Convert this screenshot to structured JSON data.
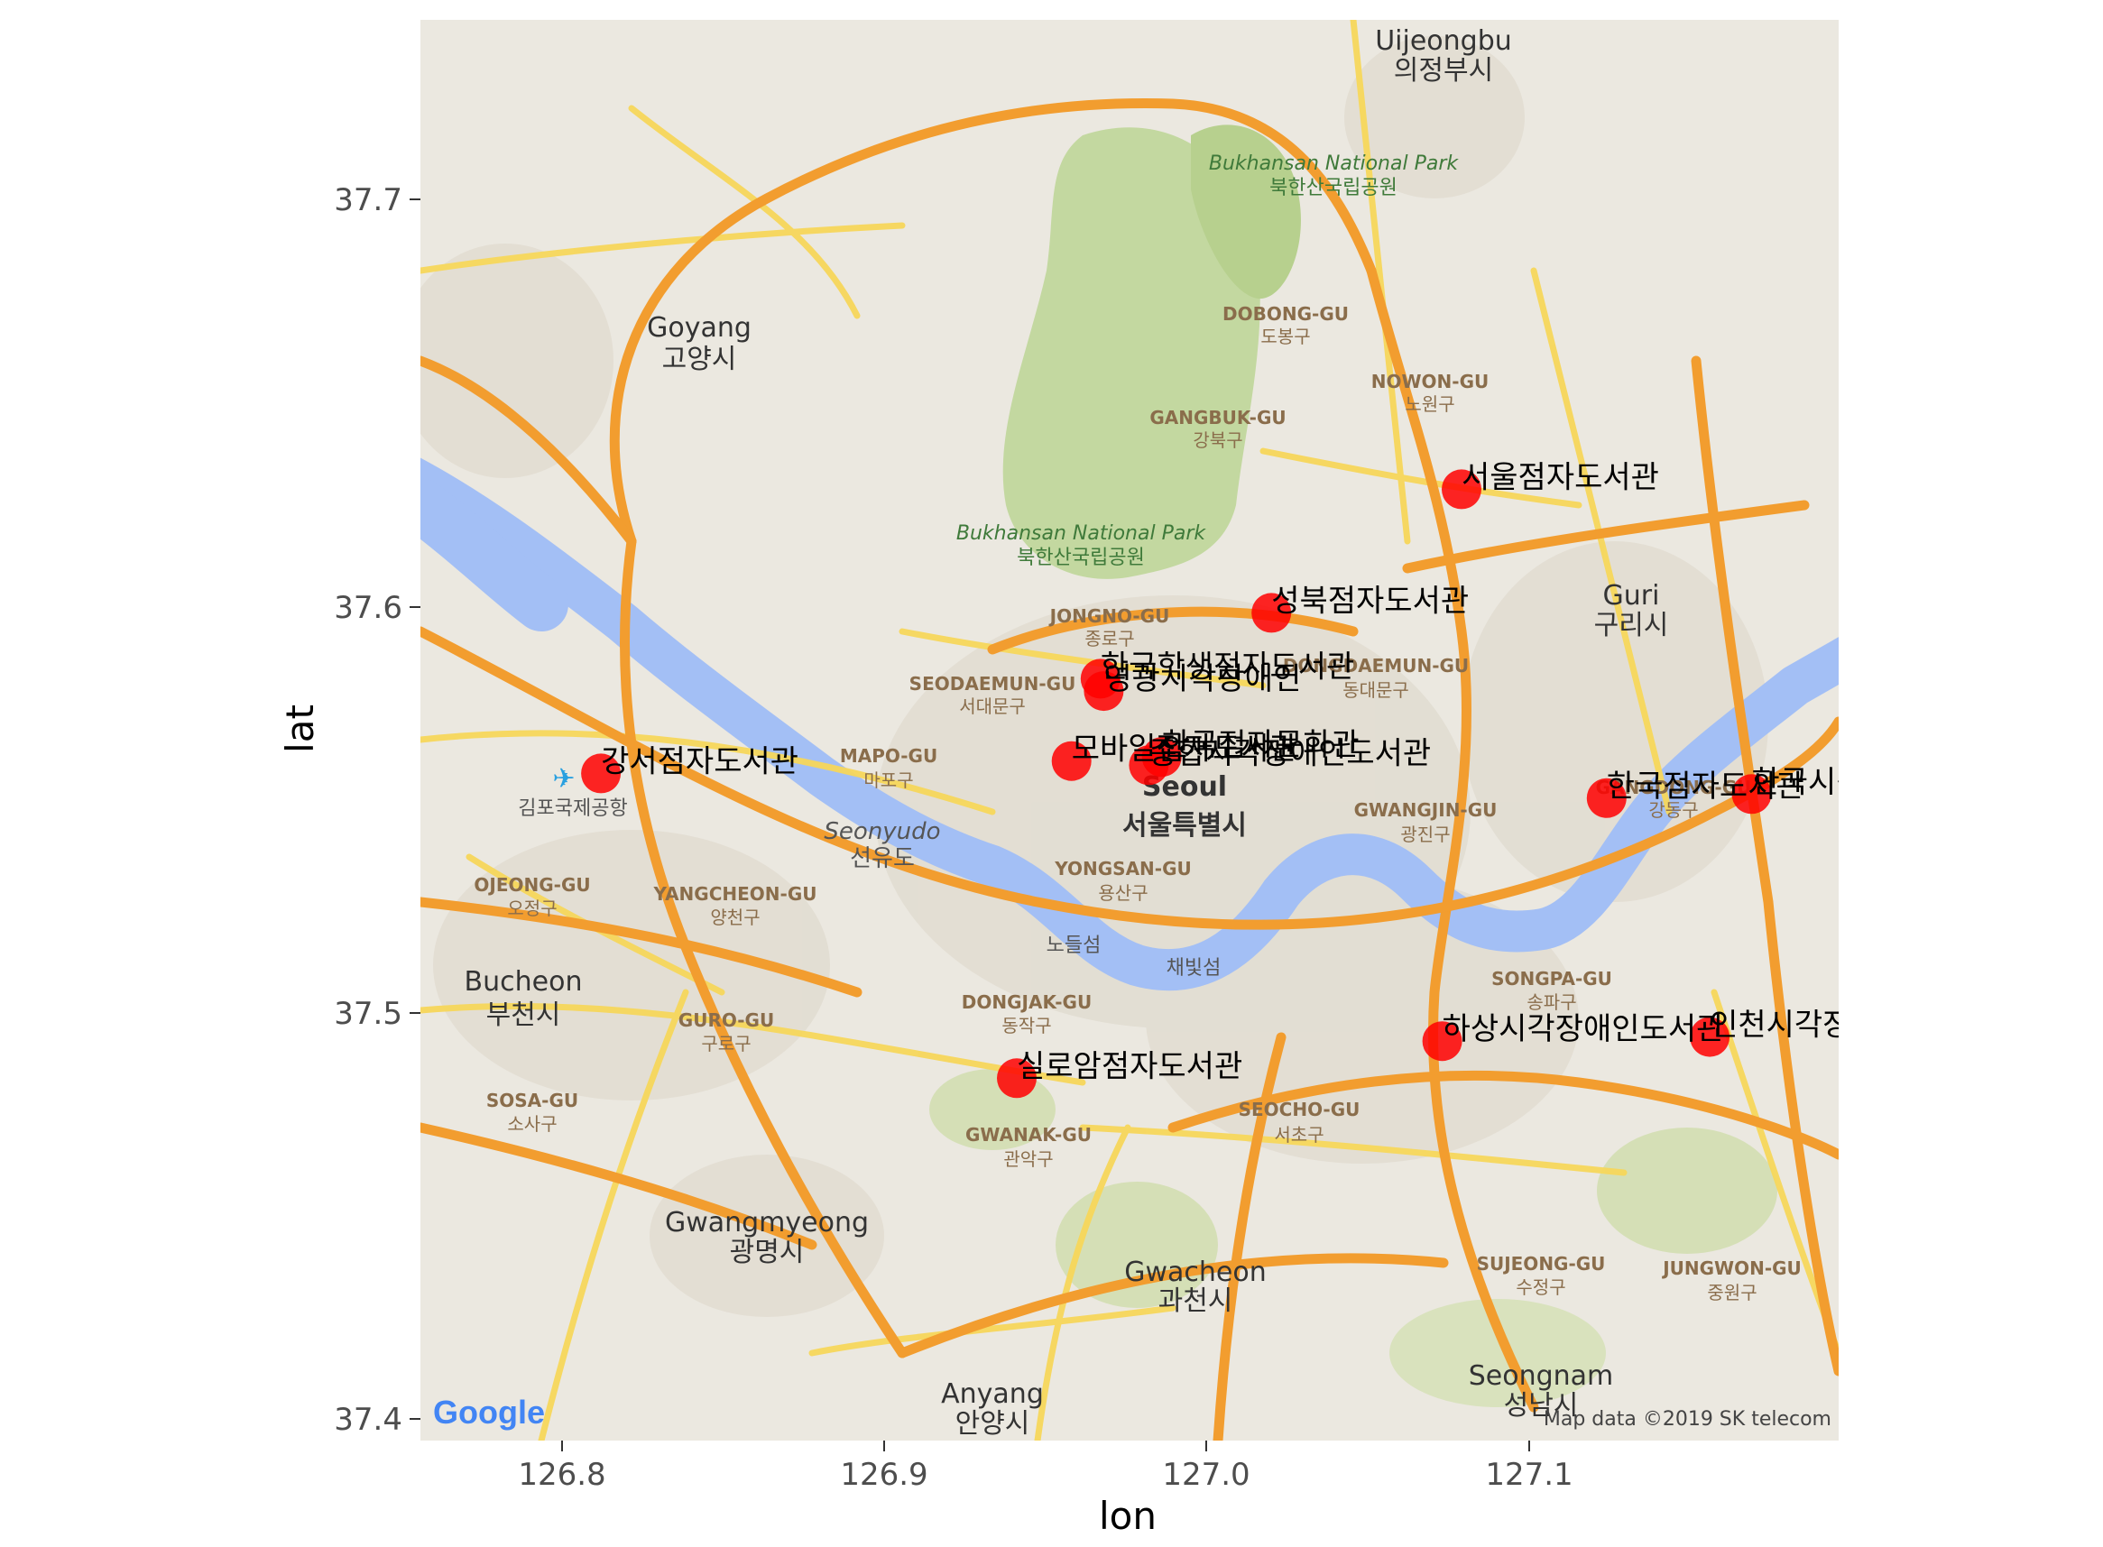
{
  "axes": {
    "x_title": "lon",
    "y_title": "lat",
    "x_ticks": [
      "126.8",
      "126.9",
      "127.0",
      "127.1"
    ],
    "y_ticks": [
      "37.4",
      "37.5",
      "37.6",
      "37.7"
    ]
  },
  "map_labels": {
    "cities": [
      {
        "en": "Uijeongbu",
        "ko": "의정부시"
      },
      {
        "en": "Goyang",
        "ko": "고양시"
      },
      {
        "en": "Guri",
        "ko": "구리시"
      },
      {
        "en": "Bucheon",
        "ko": "부천시"
      },
      {
        "en": "Gwangmyeong",
        "ko": "광명시"
      },
      {
        "en": "Gwacheon",
        "ko": "과천시"
      },
      {
        "en": "Anyang",
        "ko": "안양시"
      },
      {
        "en": "Seongnam",
        "ko": "성남시"
      },
      {
        "en": "Seoul",
        "ko": "서울특별시"
      }
    ],
    "districts": [
      {
        "en": "DOBONG-GU",
        "ko": "도봉구"
      },
      {
        "en": "NOWON-GU",
        "ko": "노원구"
      },
      {
        "en": "GANGBUK-GU",
        "ko": "강북구"
      },
      {
        "en": "JONGNO-GU",
        "ko": "종로구"
      },
      {
        "en": "SEODAEMUN-GU",
        "ko": "서대문구"
      },
      {
        "en": "DONGDAEMUN-GU",
        "ko": "동대문구"
      },
      {
        "en": "MAPO-GU",
        "ko": "마포구"
      },
      {
        "en": "YONGSAN-GU",
        "ko": "용산구"
      },
      {
        "en": "GWANGJIN-GU",
        "ko": "광진구"
      },
      {
        "en": "GANGDONG-GU",
        "ko": "강동구"
      },
      {
        "en": "OJEONG-GU",
        "ko": "오정구"
      },
      {
        "en": "YANGCHEON-GU",
        "ko": "양천구"
      },
      {
        "en": "GURO-GU",
        "ko": "구로구"
      },
      {
        "en": "SOSA-GU",
        "ko": "소사구"
      },
      {
        "en": "DONGJAK-GU",
        "ko": "동작구"
      },
      {
        "en": "GWANAK-GU",
        "ko": "관악구"
      },
      {
        "en": "SEOCHO-GU",
        "ko": "서초구"
      },
      {
        "en": "SONGPA-GU",
        "ko": "송파구"
      },
      {
        "en": "SUJEONG-GU",
        "ko": "수정구"
      },
      {
        "en": "JUNGWON-GU",
        "ko": "중원구"
      }
    ],
    "parks": [
      {
        "en": "Bukhansan National Park",
        "ko": "북한산국립공원"
      },
      {
        "en": "Bukhansan National Park",
        "ko": "북한산국립공원"
      }
    ],
    "places": [
      "Seonyudo",
      "선유도",
      "김포국제공항",
      "노들섬",
      "채빛섬"
    ]
  },
  "attribution": {
    "logo": "Google",
    "text": "Map data ©2019 SK telecom"
  },
  "colors": {
    "point": "#ff0000",
    "background": "#ebe8e0",
    "river": "#a3bff5",
    "highway": "#f29d2f",
    "road": "#f7d75b",
    "park": "#c3d8a0"
  },
  "chart_data": {
    "type": "scatter",
    "xlabel": "lon",
    "ylabel": "lat",
    "xlim": [
      126.755,
      127.195
    ],
    "ylim": [
      37.395,
      37.74
    ],
    "points": [
      {
        "lon": 127.078,
        "lat": 37.626,
        "label": "서울점자도서관"
      },
      {
        "lon": 127.019,
        "lat": 37.596,
        "label": "성북점자도서관"
      },
      {
        "lon": 126.966,
        "lat": 37.58,
        "label": "한국학생점자도서관"
      },
      {
        "lon": 126.967,
        "lat": 37.577,
        "label": "영광시각장애인"
      },
      {
        "lon": 126.811,
        "lat": 37.557,
        "label": "강서점자도서관"
      },
      {
        "lon": 126.957,
        "lat": 37.56,
        "label": "모바일점자도서관"
      },
      {
        "lon": 126.981,
        "lat": 37.559,
        "label": "종합시각장애인도서관"
      },
      {
        "lon": 126.985,
        "lat": 37.561,
        "label": "한국점자문화관"
      },
      {
        "lon": 127.123,
        "lat": 37.551,
        "label": "한국점자도서관"
      },
      {
        "lon": 127.168,
        "lat": 37.552,
        "label": "한국시각장애인복지관"
      },
      {
        "lon": 127.072,
        "lat": 37.492,
        "label": "하상시각장애인도서관"
      },
      {
        "lon": 127.155,
        "lat": 37.493,
        "label": "인천시각장애인도서관"
      },
      {
        "lon": 126.94,
        "lat": 37.483,
        "label": "실로암점자도서관"
      }
    ]
  }
}
